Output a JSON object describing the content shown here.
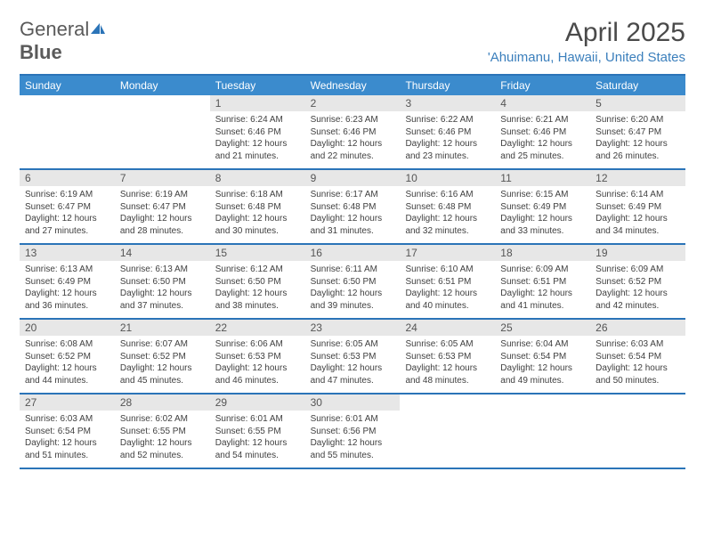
{
  "brand": {
    "part1": "General",
    "part2": "Blue"
  },
  "title": "April 2025",
  "location": "'Ahuimanu, Hawaii, United States",
  "colors": {
    "header_bg": "#3b8bcd",
    "border": "#2b74b8",
    "daynum_bg": "#e7e7e7",
    "location": "#3b7fbc"
  },
  "dayNames": [
    "Sunday",
    "Monday",
    "Tuesday",
    "Wednesday",
    "Thursday",
    "Friday",
    "Saturday"
  ],
  "weeks": [
    [
      {
        "n": "",
        "sr": "",
        "ss": "",
        "dl": ""
      },
      {
        "n": "",
        "sr": "",
        "ss": "",
        "dl": ""
      },
      {
        "n": "1",
        "sr": "Sunrise: 6:24 AM",
        "ss": "Sunset: 6:46 PM",
        "dl": "Daylight: 12 hours and 21 minutes."
      },
      {
        "n": "2",
        "sr": "Sunrise: 6:23 AM",
        "ss": "Sunset: 6:46 PM",
        "dl": "Daylight: 12 hours and 22 minutes."
      },
      {
        "n": "3",
        "sr": "Sunrise: 6:22 AM",
        "ss": "Sunset: 6:46 PM",
        "dl": "Daylight: 12 hours and 23 minutes."
      },
      {
        "n": "4",
        "sr": "Sunrise: 6:21 AM",
        "ss": "Sunset: 6:46 PM",
        "dl": "Daylight: 12 hours and 25 minutes."
      },
      {
        "n": "5",
        "sr": "Sunrise: 6:20 AM",
        "ss": "Sunset: 6:47 PM",
        "dl": "Daylight: 12 hours and 26 minutes."
      }
    ],
    [
      {
        "n": "6",
        "sr": "Sunrise: 6:19 AM",
        "ss": "Sunset: 6:47 PM",
        "dl": "Daylight: 12 hours and 27 minutes."
      },
      {
        "n": "7",
        "sr": "Sunrise: 6:19 AM",
        "ss": "Sunset: 6:47 PM",
        "dl": "Daylight: 12 hours and 28 minutes."
      },
      {
        "n": "8",
        "sr": "Sunrise: 6:18 AM",
        "ss": "Sunset: 6:48 PM",
        "dl": "Daylight: 12 hours and 30 minutes."
      },
      {
        "n": "9",
        "sr": "Sunrise: 6:17 AM",
        "ss": "Sunset: 6:48 PM",
        "dl": "Daylight: 12 hours and 31 minutes."
      },
      {
        "n": "10",
        "sr": "Sunrise: 6:16 AM",
        "ss": "Sunset: 6:48 PM",
        "dl": "Daylight: 12 hours and 32 minutes."
      },
      {
        "n": "11",
        "sr": "Sunrise: 6:15 AM",
        "ss": "Sunset: 6:49 PM",
        "dl": "Daylight: 12 hours and 33 minutes."
      },
      {
        "n": "12",
        "sr": "Sunrise: 6:14 AM",
        "ss": "Sunset: 6:49 PM",
        "dl": "Daylight: 12 hours and 34 minutes."
      }
    ],
    [
      {
        "n": "13",
        "sr": "Sunrise: 6:13 AM",
        "ss": "Sunset: 6:49 PM",
        "dl": "Daylight: 12 hours and 36 minutes."
      },
      {
        "n": "14",
        "sr": "Sunrise: 6:13 AM",
        "ss": "Sunset: 6:50 PM",
        "dl": "Daylight: 12 hours and 37 minutes."
      },
      {
        "n": "15",
        "sr": "Sunrise: 6:12 AM",
        "ss": "Sunset: 6:50 PM",
        "dl": "Daylight: 12 hours and 38 minutes."
      },
      {
        "n": "16",
        "sr": "Sunrise: 6:11 AM",
        "ss": "Sunset: 6:50 PM",
        "dl": "Daylight: 12 hours and 39 minutes."
      },
      {
        "n": "17",
        "sr": "Sunrise: 6:10 AM",
        "ss": "Sunset: 6:51 PM",
        "dl": "Daylight: 12 hours and 40 minutes."
      },
      {
        "n": "18",
        "sr": "Sunrise: 6:09 AM",
        "ss": "Sunset: 6:51 PM",
        "dl": "Daylight: 12 hours and 41 minutes."
      },
      {
        "n": "19",
        "sr": "Sunrise: 6:09 AM",
        "ss": "Sunset: 6:52 PM",
        "dl": "Daylight: 12 hours and 42 minutes."
      }
    ],
    [
      {
        "n": "20",
        "sr": "Sunrise: 6:08 AM",
        "ss": "Sunset: 6:52 PM",
        "dl": "Daylight: 12 hours and 44 minutes."
      },
      {
        "n": "21",
        "sr": "Sunrise: 6:07 AM",
        "ss": "Sunset: 6:52 PM",
        "dl": "Daylight: 12 hours and 45 minutes."
      },
      {
        "n": "22",
        "sr": "Sunrise: 6:06 AM",
        "ss": "Sunset: 6:53 PM",
        "dl": "Daylight: 12 hours and 46 minutes."
      },
      {
        "n": "23",
        "sr": "Sunrise: 6:05 AM",
        "ss": "Sunset: 6:53 PM",
        "dl": "Daylight: 12 hours and 47 minutes."
      },
      {
        "n": "24",
        "sr": "Sunrise: 6:05 AM",
        "ss": "Sunset: 6:53 PM",
        "dl": "Daylight: 12 hours and 48 minutes."
      },
      {
        "n": "25",
        "sr": "Sunrise: 6:04 AM",
        "ss": "Sunset: 6:54 PM",
        "dl": "Daylight: 12 hours and 49 minutes."
      },
      {
        "n": "26",
        "sr": "Sunrise: 6:03 AM",
        "ss": "Sunset: 6:54 PM",
        "dl": "Daylight: 12 hours and 50 minutes."
      }
    ],
    [
      {
        "n": "27",
        "sr": "Sunrise: 6:03 AM",
        "ss": "Sunset: 6:54 PM",
        "dl": "Daylight: 12 hours and 51 minutes."
      },
      {
        "n": "28",
        "sr": "Sunrise: 6:02 AM",
        "ss": "Sunset: 6:55 PM",
        "dl": "Daylight: 12 hours and 52 minutes."
      },
      {
        "n": "29",
        "sr": "Sunrise: 6:01 AM",
        "ss": "Sunset: 6:55 PM",
        "dl": "Daylight: 12 hours and 54 minutes."
      },
      {
        "n": "30",
        "sr": "Sunrise: 6:01 AM",
        "ss": "Sunset: 6:56 PM",
        "dl": "Daylight: 12 hours and 55 minutes."
      },
      {
        "n": "",
        "sr": "",
        "ss": "",
        "dl": ""
      },
      {
        "n": "",
        "sr": "",
        "ss": "",
        "dl": ""
      },
      {
        "n": "",
        "sr": "",
        "ss": "",
        "dl": ""
      }
    ]
  ]
}
